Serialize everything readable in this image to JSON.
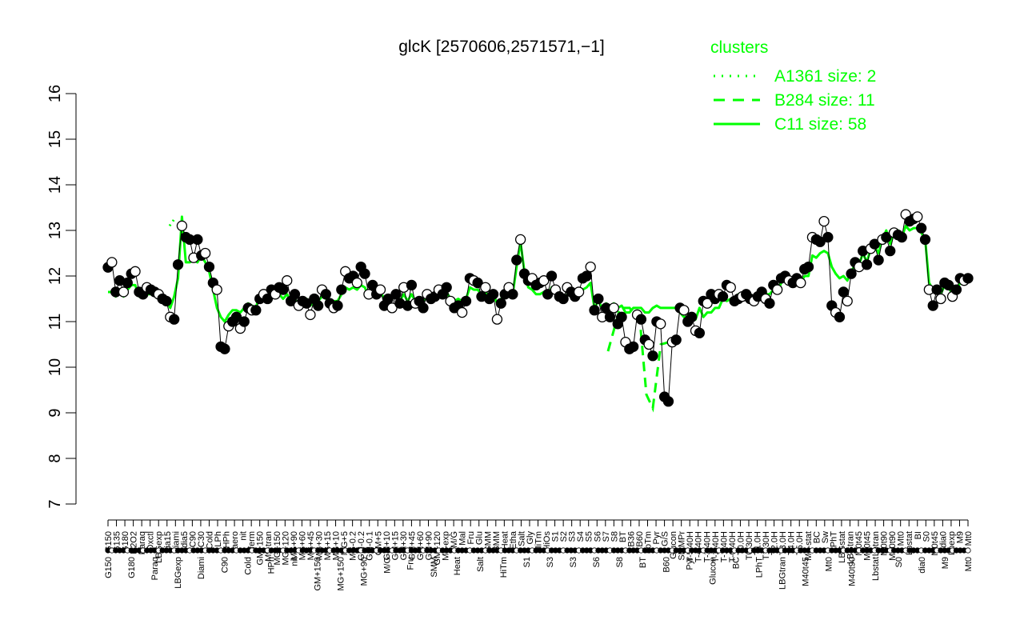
{
  "chart_data": {
    "type": "line",
    "title": "glcK [2570606,2571571,−1]",
    "xlabel": "",
    "ylabel": "",
    "ylim": [
      7,
      16
    ],
    "y_ticks": [
      "7",
      "8",
      "9",
      "10",
      "11",
      "12",
      "13",
      "14",
      "15",
      "16"
    ],
    "grid": false,
    "legend": {
      "title": "clusters",
      "position": "top-right",
      "entries": [
        {
          "label": "A1361 size: 2",
          "style": "dotted",
          "color": "#00ff00"
        },
        {
          "label": "B284 size: 11",
          "style": "dashed",
          "color": "#00ff00"
        },
        {
          "label": "C11 size: 58",
          "style": "solid",
          "color": "#00ff00"
        }
      ]
    },
    "categories_top": [
      "G150",
      "G135",
      "G180",
      "H2O2",
      "Paraq",
      "Oxctl",
      "LBGexp",
      "dia15",
      "Diami",
      "dia5",
      "C90",
      "C30",
      "Cold",
      "LPh",
      "HPh",
      "aero",
      "nit",
      "ferm",
      "GM+150",
      "M9-tran",
      "MG+150",
      "MG+120",
      "MG+90",
      "MG+60",
      "MG+45",
      "MG+30",
      "MG+15",
      "MG+10",
      "MG+5",
      "MG-0.2",
      "GM-0.2",
      "GM-0.1",
      "GM+5",
      "GM+10",
      "GM+15",
      "GM+30",
      "GM+45",
      "GM+60",
      "GM+90",
      "GM+120",
      "M9-exp",
      "M/G",
      "Mal",
      "Fru",
      "Glu",
      "SMM",
      "BMM",
      "Heat",
      "Etha",
      "Salt",
      "Gly",
      "HiTm",
      "HiOs",
      "S1",
      "S2",
      "S3",
      "S4",
      "S5",
      "S6",
      "S7",
      "S8",
      "BT",
      "B36",
      "B60",
      "LoTm",
      "Pyr",
      "G/S",
      "Glucon",
      "SMMPr",
      "T-5.40H",
      "T-4.40H",
      "T-3.40H",
      "T-2.40H",
      "T-1.40H",
      "T-0.40H",
      "T0.0H",
      "T0.30H",
      "T1.0H",
      "T1.30H",
      "T2.0H",
      "T3.0H",
      "T4.0H",
      "T5.0H",
      "M9-stat",
      "BC",
      "Sw",
      "LPhT",
      "LBGstat",
      "LBGtran",
      "M0t45",
      "M40t45",
      "Lbtran",
      "M0t90",
      "M40t90",
      "Mt0",
      "Lbstat",
      "BI",
      "S0",
      "M0t45",
      "dia0",
      "Lbexp",
      "M9",
      "Mt0"
    ],
    "categories_bottom": [
      "G150",
      "G180",
      "Paraq",
      "LBGexp",
      "Diami",
      "C90",
      "Cold",
      "HPh",
      "nit",
      "GM+150",
      "MG+150",
      "MG+90",
      "M/G",
      "Fru",
      "SMM",
      "Heat",
      "Salt",
      "HiTm",
      "S1",
      "S3",
      "S3",
      "S6",
      "S8",
      "BT",
      "B60",
      "Pyr",
      "Glucon",
      "BC",
      "LPhT",
      "LBGtran",
      "M40t45",
      "Mt0",
      "M40t90",
      "Lbstat",
      "S0",
      "dia0",
      "M9",
      "Mt0"
    ],
    "points": [
      12.19,
      12.3,
      11.65,
      11.9,
      11.65,
      11.85,
      12.05,
      12.1,
      11.65,
      11.6,
      11.75,
      11.7,
      11.65,
      11.6,
      11.5,
      11.45,
      11.1,
      11.05,
      12.25,
      13.1,
      12.85,
      12.8,
      12.4,
      12.8,
      12.45,
      12.5,
      12.2,
      11.85,
      11.7,
      10.45,
      10.4,
      10.9,
      11.0,
      11.1,
      10.85,
      11.0,
      11.3,
      11.25,
      11.25,
      11.5,
      11.6,
      11.5,
      11.7,
      11.6,
      11.75,
      11.7,
      11.9,
      11.45,
      11.6,
      11.35,
      11.45,
      11.4,
      11.15,
      11.5,
      11.35,
      11.7,
      11.6,
      11.4,
      11.3,
      11.35,
      11.7,
      12.1,
      11.95,
      12.0,
      11.85,
      12.2,
      12.05,
      11.6,
      11.8,
      11.6,
      11.7,
      11.35,
      11.5,
      11.3,
      11.6,
      11.4,
      11.75,
      11.35,
      11.8,
      11.4,
      11.45,
      11.3,
      11.6,
      11.5,
      11.55,
      11.7,
      11.6,
      11.75,
      11.45,
      11.3,
      11.35,
      11.2,
      11.45,
      11.95,
      11.9,
      11.85,
      11.55,
      11.75,
      11.5,
      11.6,
      11.05,
      11.4,
      11.6,
      11.75,
      11.6,
      12.35,
      12.8,
      12.05,
      11.9,
      11.95,
      11.8,
      11.85,
      11.9,
      11.6,
      12.0,
      11.7,
      11.55,
      11.5,
      11.75,
      11.65,
      11.55,
      11.65,
      11.95,
      12.0,
      12.2,
      11.25,
      11.5,
      11.1,
      11.3,
      11.1,
      11.3,
      10.95,
      11.1,
      10.55,
      10.4,
      10.45,
      11.15,
      11.05,
      10.6,
      10.5,
      10.25,
      11.0,
      10.95,
      9.35,
      9.25,
      10.55,
      10.6,
      11.3,
      11.25,
      11.0,
      11.1,
      10.8,
      10.75,
      11.45,
      11.4,
      11.6,
      11.5,
      11.6,
      11.55,
      11.8,
      11.75,
      11.45,
      11.5,
      11.55,
      11.6,
      11.5,
      11.45,
      11.55,
      11.65,
      11.5,
      11.4,
      11.8,
      11.7,
      11.95,
      12.0,
      11.9,
      11.85,
      11.95,
      11.85,
      12.15,
      12.2,
      12.85,
      12.8,
      12.75,
      13.2,
      12.85,
      11.35,
      11.2,
      11.1,
      11.65,
      11.45,
      12.05,
      12.3,
      12.2,
      12.55,
      12.25,
      12.6,
      12.7,
      12.35,
      12.8,
      12.85,
      12.55,
      12.95,
      12.9,
      12.85,
      13.35,
      13.2,
      13.25,
      13.3,
      13.05,
      12.8,
      11.7,
      11.35,
      11.7,
      11.5,
      11.85,
      11.8,
      11.55,
      11.7,
      11.95,
      11.9,
      11.95
    ],
    "line_C11": [
      11.65,
      11.65,
      11.55,
      11.7,
      11.55,
      11.7,
      11.8,
      11.8,
      11.55,
      11.55,
      11.6,
      11.6,
      11.6,
      11.55,
      11.45,
      11.45,
      11.3,
      11.55,
      11.95,
      13.3,
      12.3,
      12.3,
      12.35,
      12.3,
      12.45,
      12.3,
      12.1,
      11.7,
      11.3,
      11.1,
      11.0,
      11.15,
      11.25,
      11.25,
      11.2,
      11.3,
      11.4,
      11.35,
      11.3,
      11.6,
      11.5,
      11.5,
      11.6,
      11.55,
      11.6,
      11.5,
      11.6,
      11.45,
      11.5,
      11.35,
      11.45,
      11.5,
      11.35,
      11.45,
      11.45,
      11.55,
      11.5,
      11.45,
      11.45,
      11.45,
      11.6,
      11.75,
      11.7,
      11.75,
      11.7,
      11.8,
      11.75,
      11.55,
      11.6,
      11.55,
      11.65,
      11.5,
      11.5,
      11.5,
      11.6,
      11.45,
      11.6,
      11.45,
      11.6,
      11.45,
      11.5,
      11.45,
      11.55,
      11.5,
      11.55,
      11.6,
      11.55,
      11.65,
      11.5,
      11.45,
      11.5,
      11.45,
      11.5,
      11.75,
      11.7,
      11.7,
      11.6,
      11.65,
      11.55,
      11.6,
      11.4,
      11.5,
      11.55,
      11.65,
      11.6,
      12.2,
      12.75,
      12.1,
      11.75,
      11.7,
      11.6,
      11.6,
      11.65,
      11.55,
      11.75,
      11.6,
      11.5,
      11.5,
      11.6,
      11.55,
      11.5,
      11.55,
      11.7,
      11.75,
      11.85,
      11.3,
      11.45,
      11.3,
      11.4,
      11.35,
      11.4,
      11.3,
      11.35,
      11.2,
      11.2,
      11.3,
      11.3,
      11.3,
      11.2,
      11.2,
      11.3,
      11.35,
      11.3,
      11.3,
      11.3,
      11.3,
      11.3,
      11.2,
      11.1,
      11.1,
      11.0,
      11.05,
      11.3,
      11.1,
      11.2,
      11.2,
      11.3,
      11.3,
      11.5,
      11.45,
      11.5,
      11.5,
      11.6,
      11.55,
      11.6,
      11.6,
      11.55,
      11.6,
      11.65,
      11.6,
      11.6,
      11.7,
      11.65,
      11.85,
      11.9,
      11.85,
      11.85,
      11.85,
      11.85,
      12.0,
      12.0,
      12.45,
      12.4,
      12.5,
      12.55,
      12.5,
      12.2,
      12.05,
      11.95,
      12.0,
      11.9,
      12.1,
      12.25,
      12.25,
      12.5,
      12.3,
      12.6,
      12.65,
      12.5,
      12.8,
      13.0,
      12.7,
      12.95,
      13.0,
      12.85,
      13.1,
      13.0,
      13.05,
      13.05,
      12.95,
      12.8,
      11.85,
      11.7,
      11.75,
      11.6,
      11.8,
      11.75,
      11.6,
      11.7,
      11.85,
      11.85,
      11.95
    ],
    "line_B284": [
      10.35,
      11.3,
      11.3,
      11.0,
      9.4,
      9.1,
      10.5,
      10.55
    ],
    "line_A1361": [
      13.1,
      13.25
    ]
  }
}
